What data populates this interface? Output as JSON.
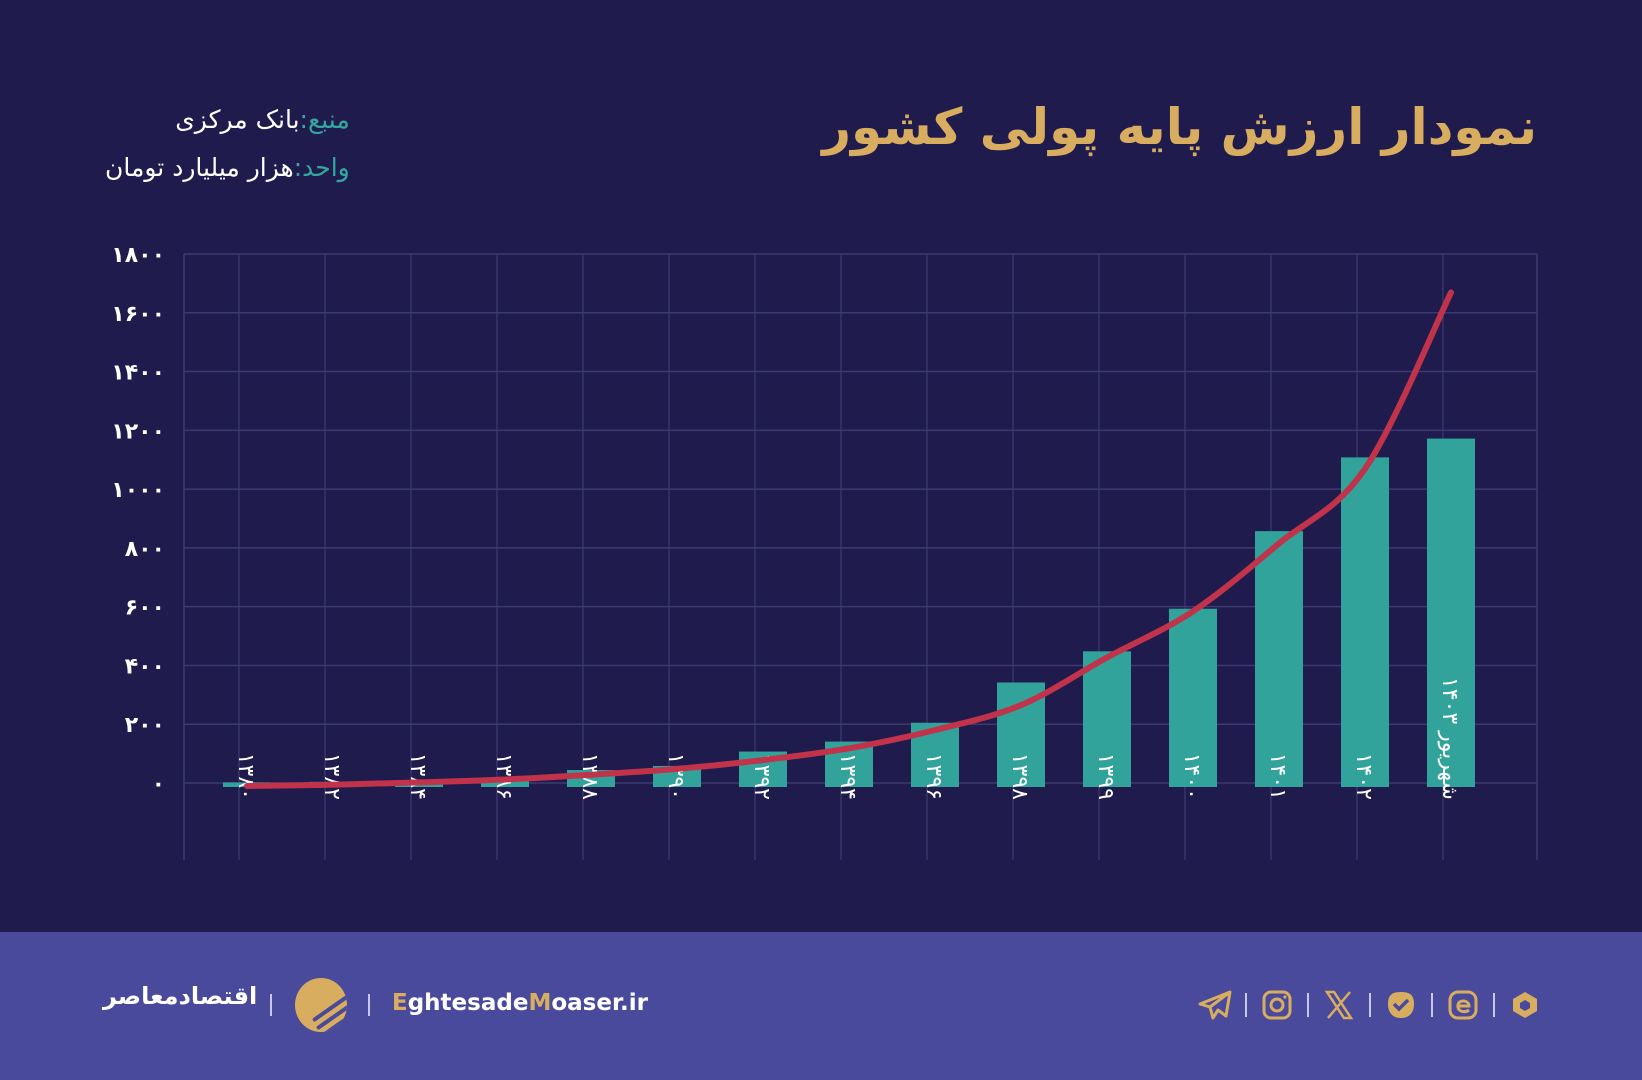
{
  "header": {
    "title": "نمودار ارزش پایه پولی کشور",
    "source_label": "منبع:",
    "source_value": "بانک مرکزی",
    "unit_label": "واحد:",
    "unit_value": "هزار میلیارد تومان"
  },
  "chart_data": {
    "type": "bar",
    "title": "نمودار ارزش پایه پولی کشور",
    "xlabel": "",
    "ylabel": "",
    "ylim": [
      0,
      1800
    ],
    "yticks": [
      "۰",
      "۲۰۰",
      "۴۰۰",
      "۶۰۰",
      "۸۰۰",
      "۱۰۰۰",
      "۱۲۰۰",
      "۱۴۰۰",
      "۱۶۰۰",
      "۱۸۰۰"
    ],
    "ytick_values": [
      0,
      200,
      400,
      600,
      800,
      1000,
      1200,
      1400,
      1600,
      1800
    ],
    "grid": true,
    "categories": [
      "۱۳۸۰",
      "۱۳۸۲",
      "۱۳۸۴",
      "۱۳۸۶",
      "۱۳۸۸",
      "۱۳۹۰",
      "۱۳۹۲",
      "۱۳۹۴",
      "۱۳۹۶",
      "۱۳۹۸",
      "۱۳۹۹",
      "۱۴۰۰",
      "۱۴۰۱",
      "۱۴۰۲",
      "شهریور ۱۴۰۳"
    ],
    "series": [
      {
        "type": "bar",
        "values": [
          2,
          4,
          6,
          14,
          44,
          58,
          107,
          141,
          205,
          342,
          448,
          593,
          857,
          1108,
          1172
        ],
        "color": "#32a39b"
      },
      {
        "type": "trendline",
        "values": [
          -10,
          -6,
          2,
          12,
          28,
          48,
          78,
          118,
          180,
          265,
          427,
          584,
          815,
          1069,
          1669
        ],
        "color": "#c0334a"
      }
    ]
  },
  "footer": {
    "brand": "اقتصادمعاصر",
    "site_first": "E",
    "site_mid1": "ghtesade",
    "site_m": "M",
    "site_rest": "oaser.ir",
    "icons": [
      "telegram-icon",
      "instagram-icon",
      "x-icon",
      "check-badge-icon",
      "eitaa-icon",
      "rubika-icon"
    ]
  },
  "colors": {
    "background": "#1f1b4d",
    "footer": "#4a4a9c",
    "accent_gold": "#d9ad5f",
    "bar": "#32a39b",
    "trend": "#c0334a",
    "label_teal": "#34a79e"
  }
}
